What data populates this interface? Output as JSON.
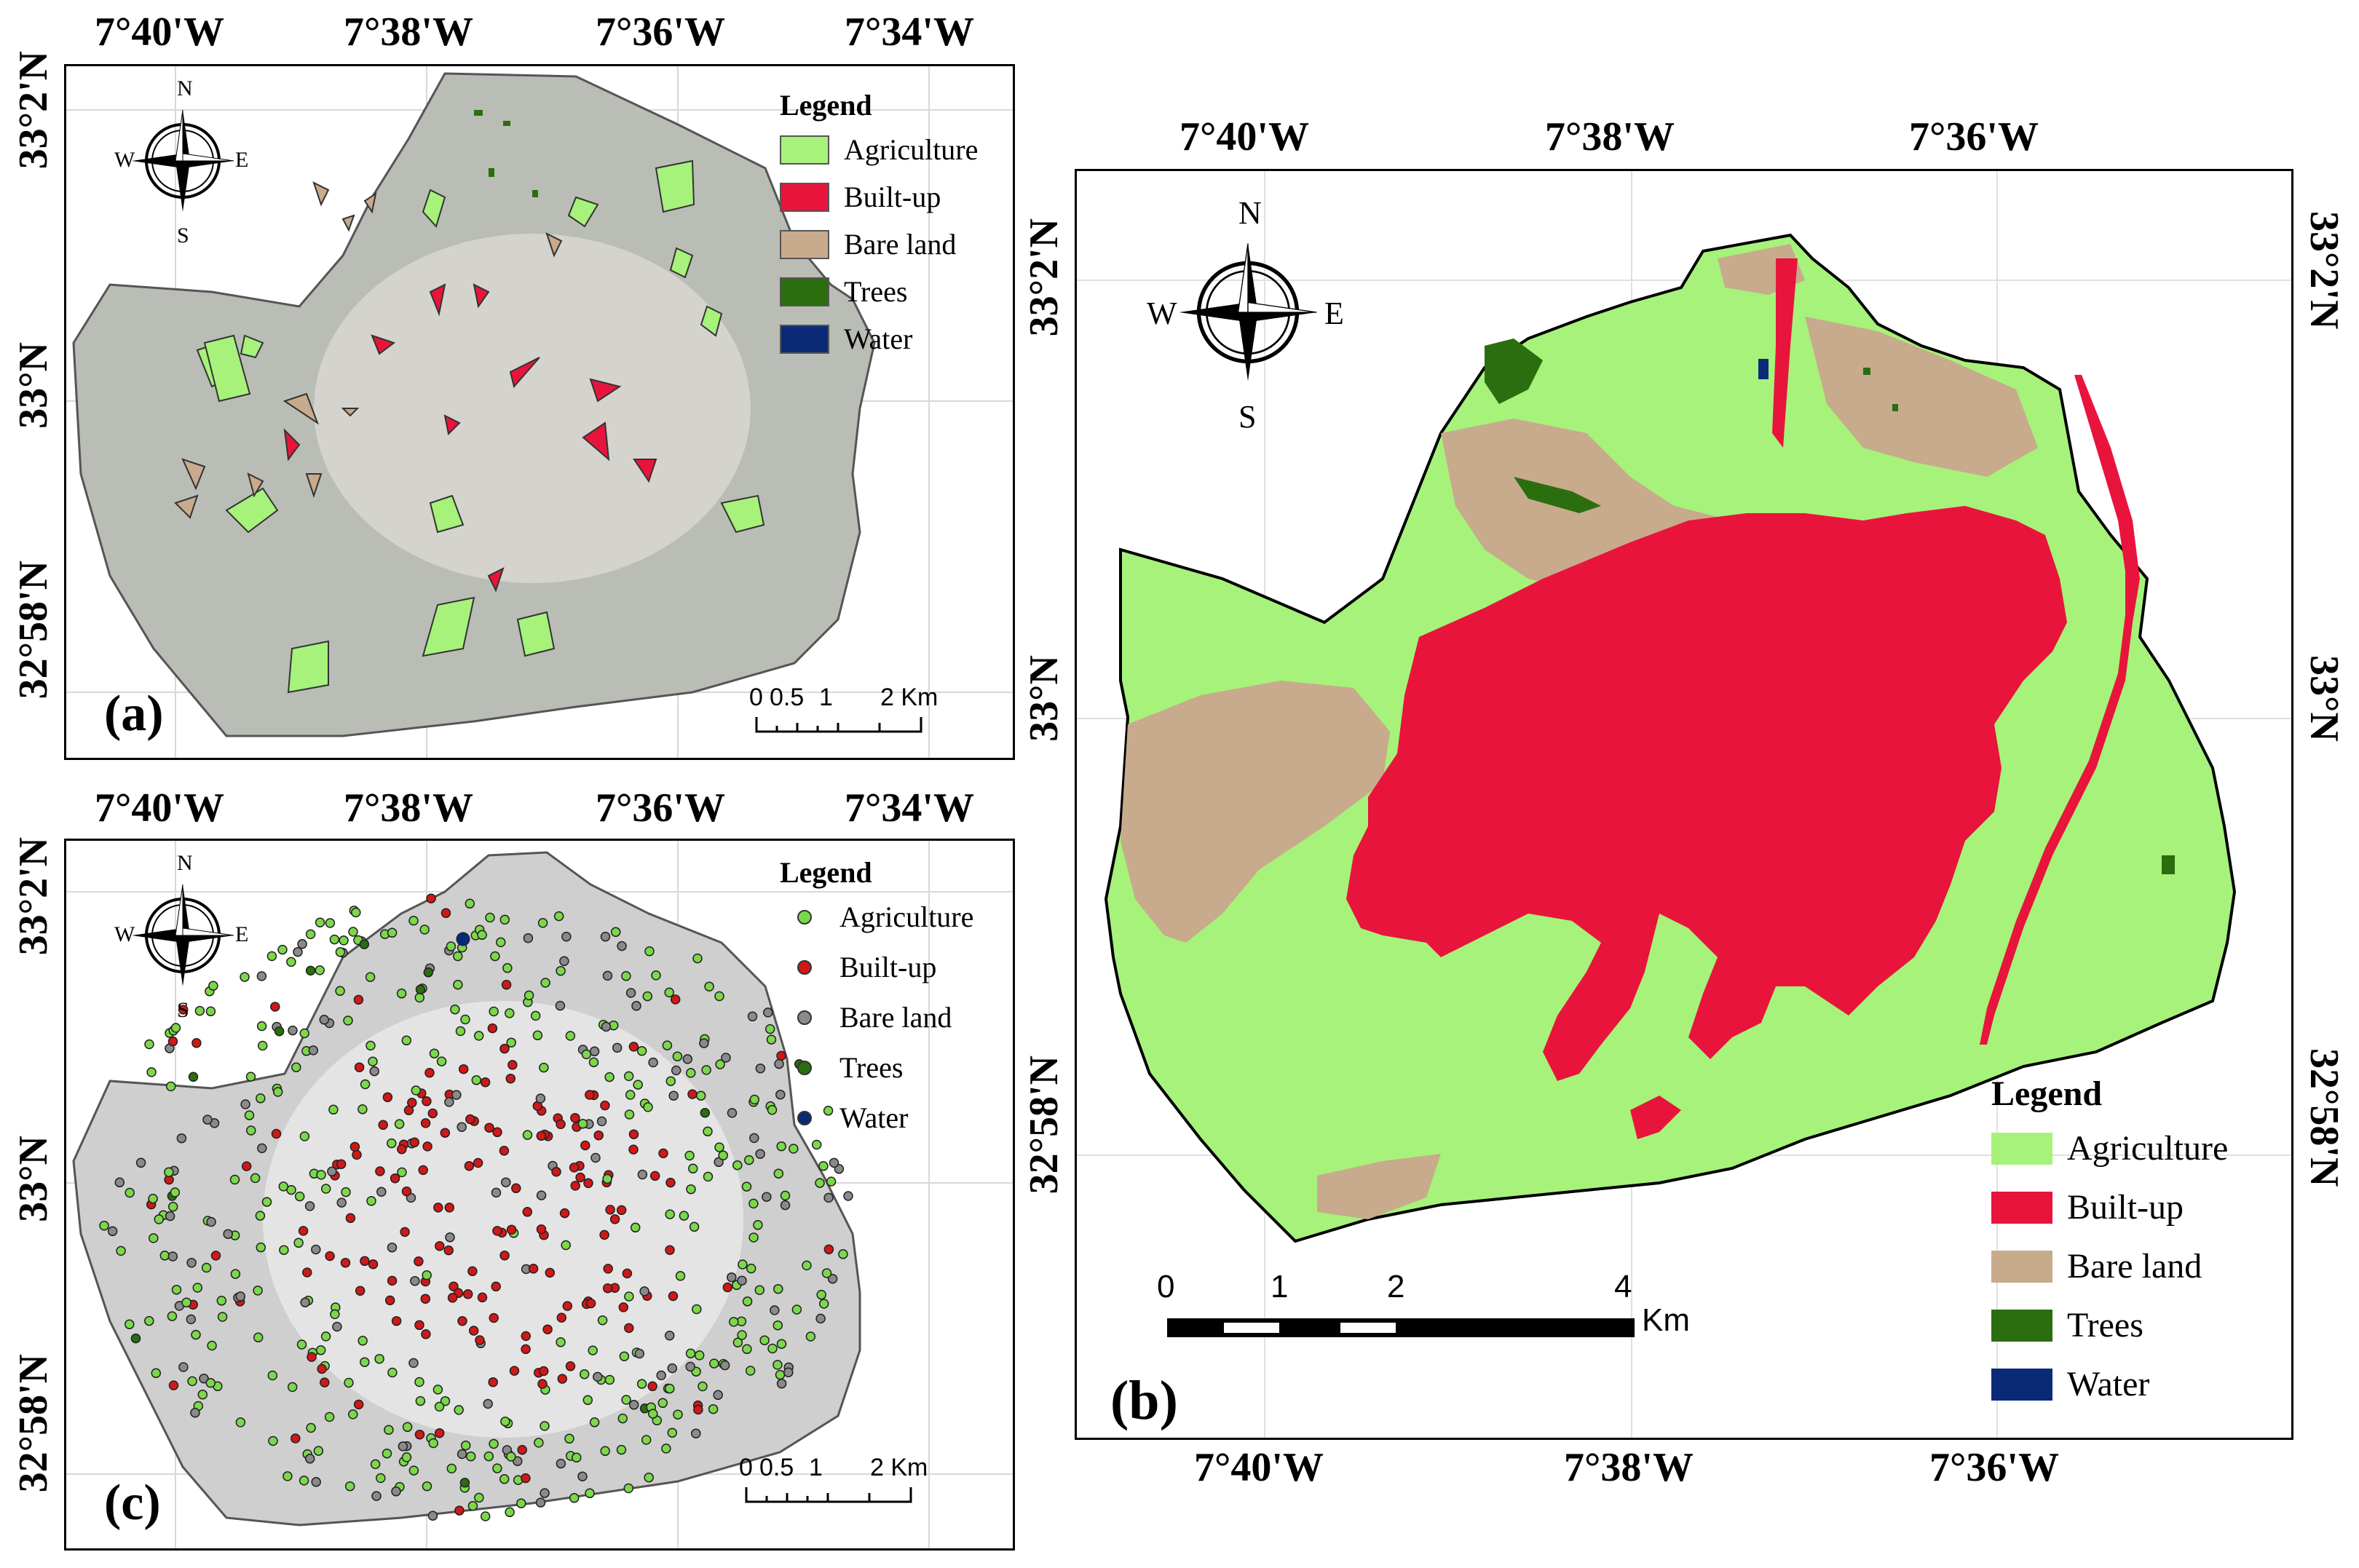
{
  "panels": {
    "a": {
      "tag": "(a)",
      "lon_top": [
        "7°40'W",
        "7°38'W",
        "7°36'W",
        "7°34'W"
      ],
      "lat_left": [
        "33°2'N",
        "33°N",
        "32°58'N"
      ],
      "legend": {
        "title": "Legend",
        "items": [
          {
            "label": "Agriculture",
            "color": "#a6f27a"
          },
          {
            "label": "Built-up",
            "color": "#e8143c"
          },
          {
            "label": "Bare land",
            "color": "#c8aa8c"
          },
          {
            "label": "Trees",
            "color": "#2a6e10"
          },
          {
            "label": "Water",
            "color": "#0a2a78"
          }
        ]
      },
      "scale": {
        "labels": [
          "0",
          "0.5",
          "1",
          "2 Km"
        ]
      }
    },
    "b": {
      "tag": "(b)",
      "lon_top": [
        "7°40'W",
        "7°38'W",
        "7°36'W"
      ],
      "lon_bottom": [
        "7°40'W",
        "7°38'W",
        "7°36'W"
      ],
      "lat_left": [
        "33°2'N",
        "33°N",
        "32°58'N"
      ],
      "lat_right": [
        "33°2'N",
        "33°N",
        "32°58'N"
      ],
      "legend": {
        "title": "Legend",
        "items": [
          {
            "label": "Agriculture",
            "color": "#a6f27a"
          },
          {
            "label": "Built-up",
            "color": "#e8143c"
          },
          {
            "label": "Bare land",
            "color": "#c8aa8c"
          },
          {
            "label": "Trees",
            "color": "#2a6e10"
          },
          {
            "label": "Water",
            "color": "#0a2a78"
          }
        ]
      },
      "scale": {
        "labels": [
          "0",
          "1",
          "2",
          "4"
        ],
        "unit": "Km"
      }
    },
    "c": {
      "tag": "(c)",
      "lon_top": [
        "7°40'W",
        "7°38'W",
        "7°36'W",
        "7°34'W"
      ],
      "lat_left": [
        "33°2'N",
        "33°N",
        "32°58'N"
      ],
      "legend": {
        "title": "Legend",
        "items": [
          {
            "label": "Agriculture",
            "color": "#7bd84a"
          },
          {
            "label": "Built-up",
            "color": "#d01818"
          },
          {
            "label": "Bare land",
            "color": "#8a8a8a"
          },
          {
            "label": "Trees",
            "color": "#2a6e10"
          },
          {
            "label": "Water",
            "color": "#0a2a78"
          }
        ]
      },
      "scale": {
        "labels": [
          "0",
          "0.5",
          "1",
          "2 Km"
        ]
      }
    }
  },
  "compass": {
    "n": "N",
    "s": "S",
    "e": "E",
    "w": "W"
  }
}
